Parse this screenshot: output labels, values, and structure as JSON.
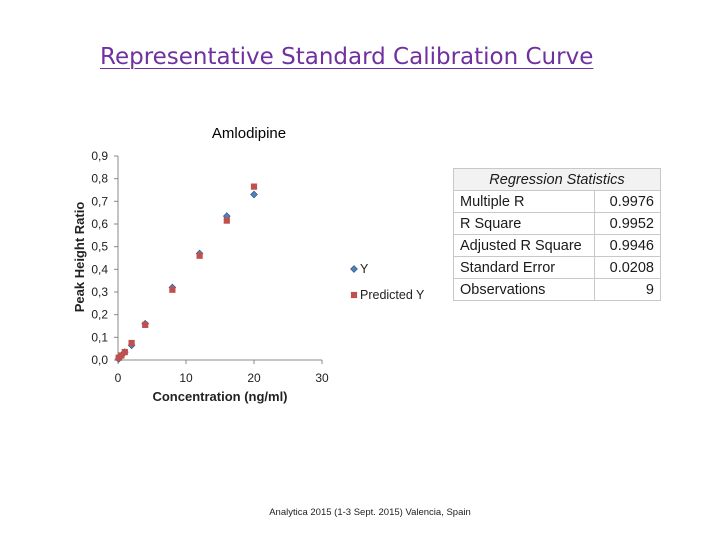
{
  "slide_title": "Representative Standard Calibration Curve",
  "footer": "Analytica 2015 (1-3 Sept. 2015) Valencia, Spain",
  "chart_data": {
    "type": "scatter",
    "title": "Amlodipine",
    "xlabel": "Concentration (ng/ml)",
    "ylabel": "Peak Height Ratio",
    "xlim": [
      0,
      30
    ],
    "ylim": [
      0,
      0.9
    ],
    "x_ticks": [
      "0",
      "10",
      "20",
      "30"
    ],
    "y_ticks": [
      "0,0",
      "0,1",
      "0,2",
      "0,3",
      "0,4",
      "0,5",
      "0,6",
      "0,7",
      "0,8",
      "0,9"
    ],
    "legend_position": "right",
    "series": [
      {
        "name": "Y",
        "color": "#4f81bd",
        "marker": "diamond",
        "x": [
          0.1,
          0.5,
          1,
          2,
          4,
          8,
          12,
          16,
          20
        ],
        "y": [
          0.005,
          0.02,
          0.035,
          0.065,
          0.16,
          0.32,
          0.47,
          0.635,
          0.73
        ]
      },
      {
        "name": "Predicted Y",
        "color": "#c0504d",
        "marker": "square",
        "x": [
          0.1,
          0.5,
          1,
          2,
          4,
          8,
          12,
          16,
          20
        ],
        "y": [
          0.01,
          0.02,
          0.035,
          0.075,
          0.155,
          0.31,
          0.46,
          0.615,
          0.765
        ]
      }
    ]
  },
  "regression_stats": {
    "header": "Regression Statistics",
    "rows": [
      {
        "label": "Multiple R",
        "value": "0.9976"
      },
      {
        "label": "R Square",
        "value": "0.9952"
      },
      {
        "label": "Adjusted R Square",
        "value": "0.9946"
      },
      {
        "label": "Standard Error",
        "value": "0.0208"
      },
      {
        "label": "Observations",
        "value": "9"
      }
    ]
  }
}
